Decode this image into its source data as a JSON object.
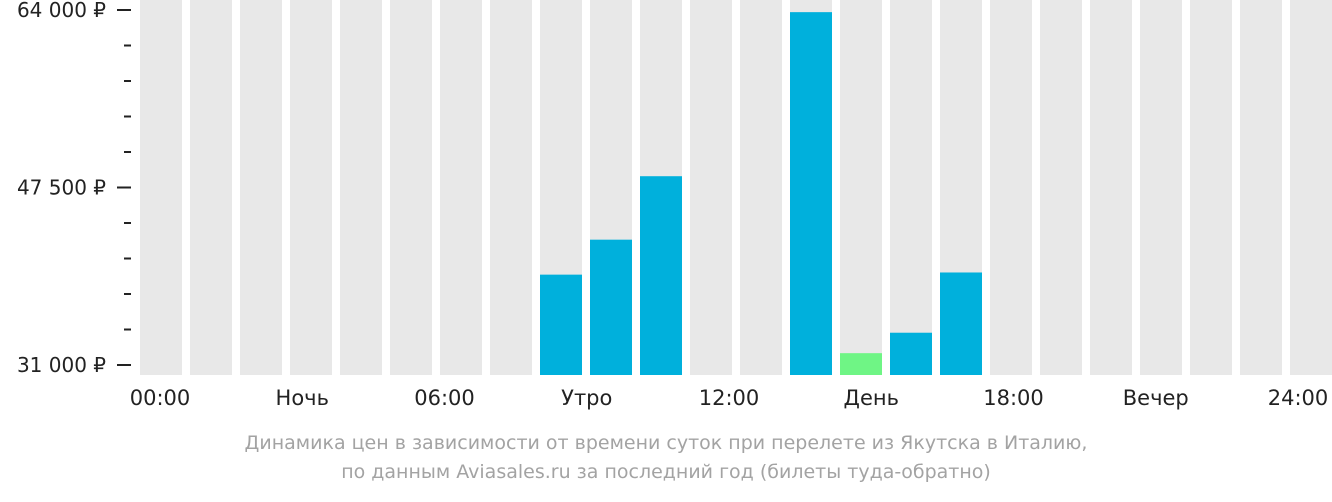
{
  "chart_data": {
    "type": "bar",
    "categories": [
      "00:00-01:00",
      "01:00-02:00",
      "02:00-03:00",
      "03:00-04:00",
      "04:00-05:00",
      "05:00-06:00",
      "06:00-07:00",
      "07:00-08:00",
      "08:00-09:00",
      "09:00-10:00",
      "10:00-11:00",
      "11:00-12:00",
      "12:00-13:00",
      "13:00-14:00",
      "14:00-15:00",
      "15:00-16:00",
      "16:00-17:00",
      "17:00-18:00",
      "18:00-19:00",
      "19:00-20:00",
      "20:00-21:00",
      "21:00-22:00",
      "22:00-23:00",
      "23:00-24:00"
    ],
    "values": [
      null,
      null,
      null,
      null,
      null,
      null,
      null,
      null,
      39400,
      42650,
      48550,
      null,
      null,
      63800,
      32100,
      34000,
      39600,
      null,
      null,
      null,
      null,
      null,
      null,
      null
    ],
    "highlight_index": 14,
    "ylim": [
      31000,
      64000
    ],
    "y_ticks": [
      {
        "value": 64000,
        "label": "64 000 ₽"
      },
      {
        "value": 47500,
        "label": "47 500 ₽"
      },
      {
        "value": 31000,
        "label": "31 000 ₽"
      }
    ],
    "y_minor_tick_count": 4,
    "x_labels": [
      "00:00",
      "Ночь",
      "06:00",
      "Утро",
      "12:00",
      "День",
      "18:00",
      "Вечер",
      "24:00"
    ],
    "colors": {
      "bar": "#00b0dc",
      "highlight": "#6ff585",
      "empty": "#e8e8e8",
      "axis_text": "#222222"
    }
  },
  "caption": {
    "line1": "Динамика цен в зависимости от времени суток при перелете из Якутска в Италию,",
    "line2": "по данным Aviasales.ru за последний год (билеты туда-обратно)"
  }
}
